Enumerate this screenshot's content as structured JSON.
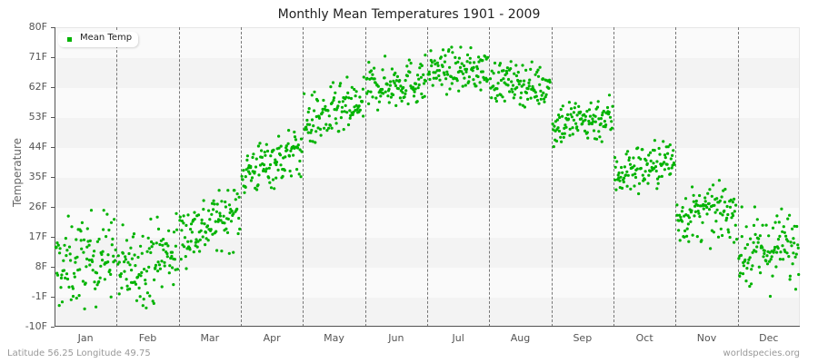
{
  "chart_data": {
    "type": "scatter",
    "title": "Monthly Mean Temperatures 1901 - 2009",
    "xlabel": "",
    "ylabel": "Temperature",
    "ylim": [
      -10,
      80
    ],
    "yticks": [
      "80F",
      "71F",
      "62F",
      "53F",
      "44F",
      "35F",
      "26F",
      "17F",
      "8F",
      "-1F",
      "-10F"
    ],
    "ytick_values": [
      80,
      71,
      62,
      53,
      44,
      35,
      26,
      17,
      8,
      -1,
      -10
    ],
    "categories": [
      "Jan",
      "Feb",
      "Mar",
      "Apr",
      "May",
      "Jun",
      "Jul",
      "Aug",
      "Sep",
      "Oct",
      "Nov",
      "Dec"
    ],
    "grid": "alternating horizontal bands, dashed vertical month separators",
    "legend": {
      "position": "top-left",
      "entries": [
        "Mean Temp"
      ]
    },
    "series": [
      {
        "name": "Mean Temp",
        "color": "#00b300",
        "points_per_month": 109,
        "monthly_summary": [
          {
            "month": "Jan",
            "mean_start": 7,
            "mean_end": 13,
            "min": -9,
            "max": 25
          },
          {
            "month": "Feb",
            "mean_start": 6,
            "mean_end": 13,
            "min": -7,
            "max": 24
          },
          {
            "month": "Mar",
            "mean_start": 17,
            "mean_end": 25,
            "min": 7,
            "max": 31
          },
          {
            "month": "Apr",
            "mean_start": 36,
            "mean_end": 43,
            "min": 30,
            "max": 50
          },
          {
            "month": "May",
            "mean_start": 51,
            "mean_end": 57,
            "min": 44,
            "max": 65
          },
          {
            "month": "Jun",
            "mean_start": 62,
            "mean_end": 64,
            "min": 55,
            "max": 73
          },
          {
            "month": "Jul",
            "mean_start": 67,
            "mean_end": 67,
            "min": 58,
            "max": 74
          },
          {
            "month": "Aug",
            "mean_start": 64,
            "mean_end": 62,
            "min": 56,
            "max": 72
          },
          {
            "month": "Sep",
            "mean_start": 51,
            "mean_end": 53,
            "min": 44,
            "max": 62
          },
          {
            "month": "Oct",
            "mean_start": 36,
            "mean_end": 40,
            "min": 27,
            "max": 46
          },
          {
            "month": "Nov",
            "mean_start": 23,
            "mean_end": 25,
            "min": 13,
            "max": 34
          },
          {
            "month": "Dec",
            "mean_start": 11,
            "mean_end": 15,
            "min": -3,
            "max": 26
          }
        ]
      }
    ]
  },
  "footer": {
    "location": "Latitude 56.25 Longitude 49.75",
    "source": "worldspecies.org"
  }
}
